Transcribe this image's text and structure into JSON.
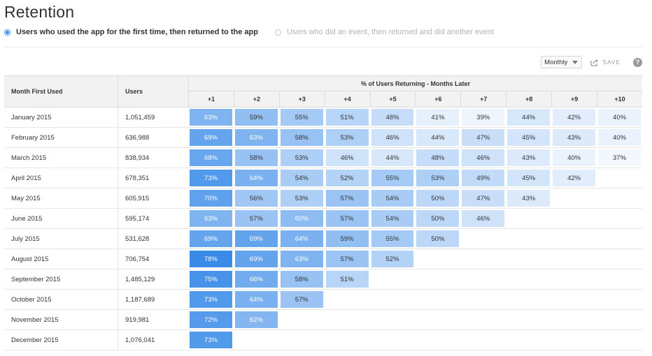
{
  "page": {
    "title": "Retention"
  },
  "mode": {
    "options": [
      {
        "label": "Users who used the app for the first time, then returned to the app",
        "selected": true
      },
      {
        "label": "Users who did an event, then returned and did another event",
        "selected": false
      }
    ]
  },
  "toolbar": {
    "interval": "Monthly",
    "save_label": "SAVE",
    "help_label": "?"
  },
  "table": {
    "columns": {
      "month": "Month First Used",
      "users": "Users",
      "group": "% of Users Returning - Months Later"
    },
    "periods": [
      "+1",
      "+2",
      "+3",
      "+4",
      "+5",
      "+6",
      "+7",
      "+8",
      "+9",
      "+10"
    ],
    "rows": [
      {
        "month": "January 2015",
        "users": "1,051,459",
        "cells": [
          "63%",
          "59%",
          "55%",
          "51%",
          "48%",
          "41%",
          "39%",
          "44%",
          "42%",
          "40%"
        ]
      },
      {
        "month": "February 2015",
        "users": "636,988",
        "cells": [
          "69%",
          "63%",
          "58%",
          "53%",
          "46%",
          "44%",
          "47%",
          "45%",
          "43%",
          "40%"
        ]
      },
      {
        "month": "March 2015",
        "users": "838,934",
        "cells": [
          "68%",
          "58%",
          "53%",
          "46%",
          "44%",
          "48%",
          "46%",
          "43%",
          "40%",
          "37%"
        ]
      },
      {
        "month": "April 2015",
        "users": "678,351",
        "cells": [
          "73%",
          "64%",
          "54%",
          "52%",
          "55%",
          "53%",
          "49%",
          "45%",
          "42%"
        ]
      },
      {
        "month": "May 2015",
        "users": "605,915",
        "cells": [
          "70%",
          "56%",
          "53%",
          "57%",
          "54%",
          "50%",
          "47%",
          "43%"
        ]
      },
      {
        "month": "June 2015",
        "users": "595,174",
        "cells": [
          "63%",
          "57%",
          "60%",
          "57%",
          "54%",
          "50%",
          "46%"
        ]
      },
      {
        "month": "July 2015",
        "users": "531,628",
        "cells": [
          "69%",
          "69%",
          "64%",
          "59%",
          "55%",
          "50%"
        ]
      },
      {
        "month": "August 2015",
        "users": "706,754",
        "cells": [
          "78%",
          "69%",
          "63%",
          "57%",
          "52%"
        ]
      },
      {
        "month": "September 2015",
        "users": "1,485,129",
        "cells": [
          "75%",
          "66%",
          "58%",
          "51%"
        ]
      },
      {
        "month": "October 2015",
        "users": "1,187,689",
        "cells": [
          "73%",
          "64%",
          "57%"
        ]
      },
      {
        "month": "November 2015",
        "users": "919,981",
        "cells": [
          "72%",
          "62%"
        ]
      },
      {
        "month": "December 2015",
        "users": "1,076,041",
        "cells": [
          "73%"
        ]
      }
    ]
  },
  "colors": {
    "accent": "#3a8ee6",
    "cell_strong": "#3d8ce8",
    "cell_light": "#f4f8fe"
  }
}
